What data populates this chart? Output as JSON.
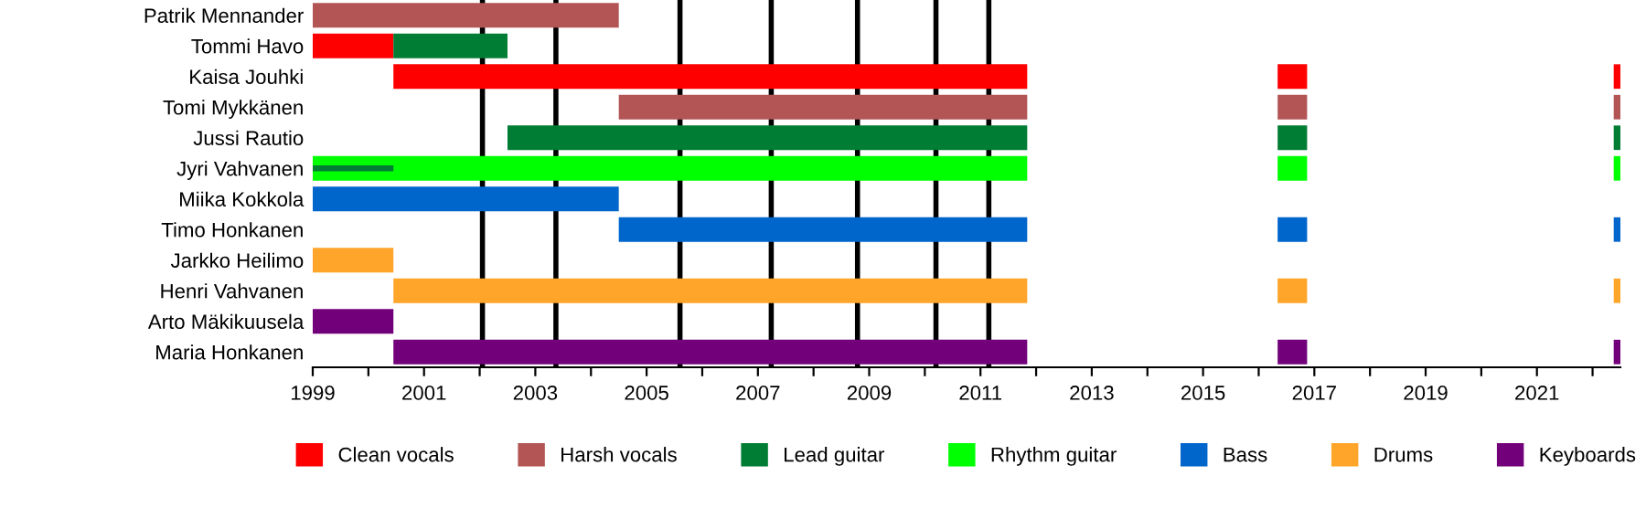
{
  "chart_data": {
    "type": "bar",
    "orientation": "horizontal",
    "categories": [
      "Patrik Mennander",
      "Tommi Havo",
      "Kaisa Jouhki",
      "Tomi Mykkänen",
      "Jussi Rautio",
      "Jyri Vahvanen",
      "Miika Kokkola",
      "Timo Honkanen",
      "Jarkko Heilimo",
      "Henri Vahvanen",
      "Arto Mäkikuusela",
      "Maria Honkanen"
    ],
    "series": [
      {
        "name": "Clean vocals",
        "color": "#ff0000",
        "values": [
          null,
          1.45,
          11.39,
          null,
          null,
          null,
          null,
          null,
          null,
          null,
          null,
          null
        ],
        "base": [
          null,
          1999,
          2000.45,
          null,
          null,
          null,
          null,
          null,
          null,
          null,
          null,
          null
        ]
      },
      {
        "name": "Harsh vocals",
        "color": "#b35555",
        "values": [
          5.5,
          null,
          null,
          7.34,
          null,
          null,
          null,
          null,
          null,
          null,
          null,
          null
        ],
        "base": [
          1999,
          null,
          null,
          2004.5,
          null,
          null,
          null,
          null,
          null,
          null,
          null,
          null
        ]
      },
      {
        "name": "Lead guitar",
        "color": "#007d35",
        "values": [
          null,
          2.05,
          null,
          null,
          9.34,
          null,
          null,
          null,
          null,
          null,
          null,
          null
        ],
        "base": [
          null,
          2000.45,
          null,
          null,
          2002.5,
          null,
          null,
          null,
          null,
          null,
          null,
          null
        ]
      },
      {
        "name": "Rhythm guitar",
        "color": "#00ff00",
        "values": [
          null,
          null,
          null,
          null,
          null,
          12.84,
          null,
          null,
          null,
          null,
          null,
          null
        ],
        "base": [
          null,
          null,
          null,
          null,
          null,
          1999,
          null,
          null,
          null,
          null,
          null,
          null
        ]
      },
      {
        "name": "Bass",
        "color": "#0066cc",
        "values": [
          null,
          null,
          null,
          null,
          null,
          null,
          5.5,
          7.34,
          null,
          null,
          null,
          null
        ],
        "base": [
          null,
          null,
          null,
          null,
          null,
          null,
          1999,
          2004.5,
          null,
          null,
          null,
          null
        ]
      },
      {
        "name": "Drums",
        "color": "#ffa52a",
        "values": [
          null,
          null,
          null,
          null,
          null,
          null,
          null,
          null,
          1.45,
          11.39,
          null,
          null
        ],
        "base": [
          null,
          null,
          null,
          null,
          null,
          null,
          null,
          null,
          1999,
          2000.45,
          null,
          null
        ]
      },
      {
        "name": "Keyboards",
        "color": "#73007b",
        "values": [
          null,
          null,
          null,
          null,
          null,
          null,
          null,
          null,
          null,
          null,
          1.45,
          11.39
        ],
        "base": [
          null,
          null,
          null,
          null,
          null,
          null,
          null,
          null,
          null,
          null,
          1999,
          2000.45
        ]
      },
      {
        "colors": [
          null,
          null,
          "#ff0000",
          "#b35555",
          "#007d35",
          "#00ff00",
          null,
          "#0066cc",
          null,
          "#ffa52a",
          null,
          "#73007b"
        ],
        "values": [
          null,
          null,
          0.53,
          0.53,
          0.53,
          0.53,
          null,
          0.53,
          null,
          0.53,
          null,
          0.53
        ],
        "base": [
          null,
          null,
          2016.34,
          2016.34,
          2016.34,
          2016.34,
          null,
          2016.34,
          null,
          2016.34,
          null,
          2016.34
        ]
      },
      {
        "colors": [
          null,
          null,
          "#ff0000",
          "#b35555",
          "#007d35",
          "#00ff00",
          null,
          "#0066cc",
          null,
          "#ffa52a",
          null,
          "#73007b"
        ],
        "values": [
          null,
          null,
          0.12,
          0.12,
          0.12,
          0.12,
          null,
          0.12,
          null,
          0.12,
          null,
          0.12
        ],
        "base": [
          null,
          null,
          2022.38,
          2022.38,
          2022.38,
          2022.38,
          null,
          2022.38,
          null,
          2022.38,
          null,
          2022.38
        ]
      },
      {
        "color": "#007d35",
        "values": [
          null,
          null,
          null,
          null,
          null,
          1.45,
          null,
          null,
          null,
          null,
          null,
          null
        ],
        "base": [
          null,
          null,
          null,
          null,
          null,
          1999,
          null,
          null,
          null,
          null,
          null,
          null
        ]
      }
    ],
    "ref_lines": [
      {
        "axis": "x",
        "value": 2002.05,
        "color": "#000000"
      },
      {
        "axis": "x",
        "value": 2003.37,
        "color": "#000000"
      },
      {
        "axis": "x",
        "value": 2005.6,
        "color": "#000000"
      },
      {
        "axis": "x",
        "value": 2007.24,
        "color": "#000000"
      },
      {
        "axis": "x",
        "value": 2008.79,
        "color": "#000000"
      },
      {
        "axis": "x",
        "value": 2010.2,
        "color": "#000000"
      },
      {
        "axis": "x",
        "value": 2011.15,
        "color": "#000000"
      }
    ],
    "xlim": [
      1999,
      2022.5
    ],
    "xticks": [
      1999,
      {
        "value": 2000,
        "label": null
      },
      2001,
      {
        "value": 2002,
        "label": null
      },
      2003,
      {
        "value": 2004,
        "label": null
      },
      2005,
      {
        "value": 2006,
        "label": null
      },
      2007,
      {
        "value": 2008,
        "label": null
      },
      2009,
      {
        "value": 2010,
        "label": null
      },
      2011,
      {
        "value": 2012,
        "label": null
      },
      2013,
      {
        "value": 2014,
        "label": null
      },
      2015,
      {
        "value": 2016,
        "label": null
      },
      2017,
      {
        "value": 2018,
        "label": null
      },
      2019,
      {
        "value": 2020,
        "label": null
      },
      2021,
      {
        "value": 2022,
        "label": null
      }
    ],
    "grid": false,
    "legend": "bottom"
  }
}
